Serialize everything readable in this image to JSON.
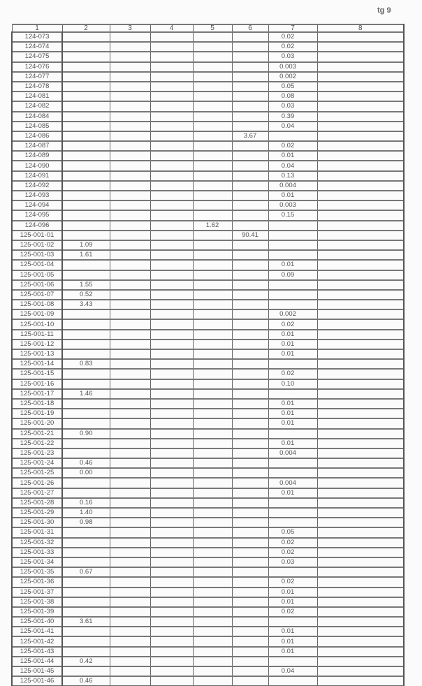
{
  "page_label": "tg 9",
  "headers": [
    "1",
    "2",
    "3",
    "4",
    "5",
    "6",
    "7",
    "8"
  ],
  "rows": [
    {
      "id": "124-073",
      "c2": "",
      "c5": "",
      "c6": "",
      "c7": "0.02"
    },
    {
      "id": "124-074",
      "c2": "",
      "c5": "",
      "c6": "",
      "c7": "0.02"
    },
    {
      "id": "124-075",
      "c2": "",
      "c5": "",
      "c6": "",
      "c7": "0.03"
    },
    {
      "id": "124-076",
      "c2": "",
      "c5": "",
      "c6": "",
      "c7": "0.003"
    },
    {
      "id": "124-077",
      "c2": "",
      "c5": "",
      "c6": "",
      "c7": "0.002"
    },
    {
      "id": "124-078",
      "c2": "",
      "c5": "",
      "c6": "",
      "c7": "0.05"
    },
    {
      "id": "124-081",
      "c2": "",
      "c5": "",
      "c6": "",
      "c7": "0.08"
    },
    {
      "id": "124-082",
      "c2": "",
      "c5": "",
      "c6": "",
      "c7": "0.03"
    },
    {
      "id": "124-084",
      "c2": "",
      "c5": "",
      "c6": "",
      "c7": "0.39"
    },
    {
      "id": "124-085",
      "c2": "",
      "c5": "",
      "c6": "",
      "c7": "0.04"
    },
    {
      "id": "124-086",
      "c2": "",
      "c5": "",
      "c6": "3.67",
      "c7": ""
    },
    {
      "id": "124-087",
      "c2": "",
      "c5": "",
      "c6": "",
      "c7": "0.02"
    },
    {
      "id": "124-089",
      "c2": "",
      "c5": "",
      "c6": "",
      "c7": "0.01"
    },
    {
      "id": "124-090",
      "c2": "",
      "c5": "",
      "c6": "",
      "c7": "0.04"
    },
    {
      "id": "124-091",
      "c2": "",
      "c5": "",
      "c6": "",
      "c7": "0.13"
    },
    {
      "id": "124-092",
      "c2": "",
      "c5": "",
      "c6": "",
      "c7": "0.004"
    },
    {
      "id": "124-093",
      "c2": "",
      "c5": "",
      "c6": "",
      "c7": "0.01"
    },
    {
      "id": "124-094",
      "c2": "",
      "c5": "",
      "c6": "",
      "c7": "0.003"
    },
    {
      "id": "124-095",
      "c2": "",
      "c5": "",
      "c6": "",
      "c7": "0.15"
    },
    {
      "id": "124-096",
      "c2": "",
      "c5": "1.62",
      "c6": "",
      "c7": ""
    },
    {
      "id": "125-001-01",
      "c2": "",
      "c5": "",
      "c6": "90.41",
      "c7": ""
    },
    {
      "id": "125-001-02",
      "c2": "1.09",
      "c5": "",
      "c6": "",
      "c7": ""
    },
    {
      "id": "125-001-03",
      "c2": "1.61",
      "c5": "",
      "c6": "",
      "c7": ""
    },
    {
      "id": "125-001-04",
      "c2": "",
      "c5": "",
      "c6": "",
      "c7": "0.01"
    },
    {
      "id": "125-001-05",
      "c2": "",
      "c5": "",
      "c6": "",
      "c7": "0.09"
    },
    {
      "id": "125-001-06",
      "c2": "1.55",
      "c5": "",
      "c6": "",
      "c7": ""
    },
    {
      "id": "125-001-07",
      "c2": "0.52",
      "c5": "",
      "c6": "",
      "c7": ""
    },
    {
      "id": "125-001-08",
      "c2": "3.43",
      "c5": "",
      "c6": "",
      "c7": ""
    },
    {
      "id": "125-001-09",
      "c2": "",
      "c5": "",
      "c6": "",
      "c7": "0.002"
    },
    {
      "id": "125-001-10",
      "c2": "",
      "c5": "",
      "c6": "",
      "c7": "0.02"
    },
    {
      "id": "125-001-11",
      "c2": "",
      "c5": "",
      "c6": "",
      "c7": "0.01"
    },
    {
      "id": "125-001-12",
      "c2": "",
      "c5": "",
      "c6": "",
      "c7": "0.01"
    },
    {
      "id": "125-001-13",
      "c2": "",
      "c5": "",
      "c6": "",
      "c7": "0.01"
    },
    {
      "id": "125-001-14",
      "c2": "0.83",
      "c5": "",
      "c6": "",
      "c7": ""
    },
    {
      "id": "125-001-15",
      "c2": "",
      "c5": "",
      "c6": "",
      "c7": "0.02"
    },
    {
      "id": "125-001-16",
      "c2": "",
      "c5": "",
      "c6": "",
      "c7": "0.10"
    },
    {
      "id": "125-001-17",
      "c2": "1.46",
      "c5": "",
      "c6": "",
      "c7": ""
    },
    {
      "id": "125-001-18",
      "c2": "",
      "c5": "",
      "c6": "",
      "c7": "0.01"
    },
    {
      "id": "125-001-19",
      "c2": "",
      "c5": "",
      "c6": "",
      "c7": "0.01"
    },
    {
      "id": "125-001-20",
      "c2": "",
      "c5": "",
      "c6": "",
      "c7": "0.01"
    },
    {
      "id": "125-001-21",
      "c2": "0.90",
      "c5": "",
      "c6": "",
      "c7": ""
    },
    {
      "id": "125-001-22",
      "c2": "",
      "c5": "",
      "c6": "",
      "c7": "0.01"
    },
    {
      "id": "125-001-23",
      "c2": "",
      "c5": "",
      "c6": "",
      "c7": "0.004"
    },
    {
      "id": "125-001-24",
      "c2": "0.46",
      "c5": "",
      "c6": "",
      "c7": ""
    },
    {
      "id": "125-001-25",
      "c2": "0.00",
      "c5": "",
      "c6": "",
      "c7": ""
    },
    {
      "id": "125-001-26",
      "c2": "",
      "c5": "",
      "c6": "",
      "c7": "0.004"
    },
    {
      "id": "125-001-27",
      "c2": "",
      "c5": "",
      "c6": "",
      "c7": "0.01"
    },
    {
      "id": "125-001-28",
      "c2": "0.16",
      "c5": "",
      "c6": "",
      "c7": ""
    },
    {
      "id": "125-001-29",
      "c2": "1.40",
      "c5": "",
      "c6": "",
      "c7": ""
    },
    {
      "id": "125-001-30",
      "c2": "0.98",
      "c5": "",
      "c6": "",
      "c7": ""
    },
    {
      "id": "125-001-31",
      "c2": "",
      "c5": "",
      "c6": "",
      "c7": "0.05"
    },
    {
      "id": "125-001-32",
      "c2": "",
      "c5": "",
      "c6": "",
      "c7": "0.02"
    },
    {
      "id": "125-001-33",
      "c2": "",
      "c5": "",
      "c6": "",
      "c7": "0.02"
    },
    {
      "id": "125-001-34",
      "c2": "",
      "c5": "",
      "c6": "",
      "c7": "0.03"
    },
    {
      "id": "125-001-35",
      "c2": "0.67",
      "c5": "",
      "c6": "",
      "c7": ""
    },
    {
      "id": "125-001-36",
      "c2": "",
      "c5": "",
      "c6": "",
      "c7": "0.02"
    },
    {
      "id": "125-001-37",
      "c2": "",
      "c5": "",
      "c6": "",
      "c7": "0.01"
    },
    {
      "id": "125-001-38",
      "c2": "",
      "c5": "",
      "c6": "",
      "c7": "0.01"
    },
    {
      "id": "125-001-39",
      "c2": "",
      "c5": "",
      "c6": "",
      "c7": "0.02"
    },
    {
      "id": "125-001-40",
      "c2": "3.61",
      "c5": "",
      "c6": "",
      "c7": ""
    },
    {
      "id": "125-001-41",
      "c2": "",
      "c5": "",
      "c6": "",
      "c7": "0.01"
    },
    {
      "id": "125-001-42",
      "c2": "",
      "c5": "",
      "c6": "",
      "c7": "0.01"
    },
    {
      "id": "125-001-43",
      "c2": "",
      "c5": "",
      "c6": "",
      "c7": "0.01"
    },
    {
      "id": "125-001-44",
      "c2": "0.42",
      "c5": "",
      "c6": "",
      "c7": ""
    },
    {
      "id": "125-001-45",
      "c2": "",
      "c5": "",
      "c6": "",
      "c7": "0.04"
    },
    {
      "id": "125-001-46",
      "c2": "0.46",
      "c5": "",
      "c6": "",
      "c7": ""
    }
  ]
}
